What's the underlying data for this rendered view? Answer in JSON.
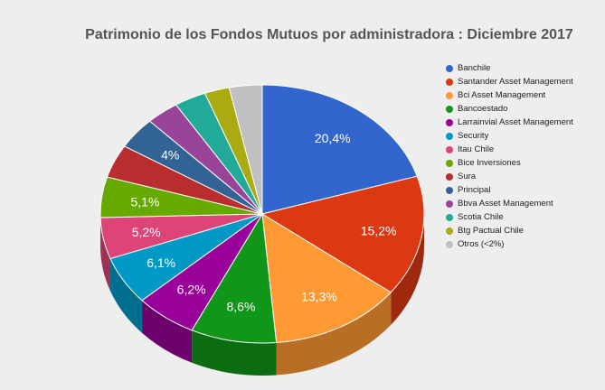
{
  "chart_data": {
    "type": "pie",
    "title": "Patrimonio de los Fondos Mutuos por administradora : Diciembre 2017",
    "legend_position": "right",
    "slices": [
      {
        "name": "Banchile",
        "value": 20.4,
        "label": "20,4%",
        "color": "#3366cc"
      },
      {
        "name": "Santander Asset Management",
        "value": 15.2,
        "label": "15,2%",
        "color": "#dc3912"
      },
      {
        "name": "Bci Asset Management",
        "value": 13.3,
        "label": "13,3%",
        "color": "#ff9933"
      },
      {
        "name": "Bancoestado",
        "value": 8.6,
        "label": "8,6%",
        "color": "#109618"
      },
      {
        "name": "Larrainvial Asset Management",
        "value": 6.2,
        "label": "6,2%",
        "color": "#990099"
      },
      {
        "name": "Security",
        "value": 6.1,
        "label": "6,1%",
        "color": "#0099c6"
      },
      {
        "name": "Itau Chile",
        "value": 5.2,
        "label": "5,2%",
        "color": "#dd4477"
      },
      {
        "name": "Bice Inversiones",
        "value": 5.1,
        "label": "5,1%",
        "color": "#66aa00"
      },
      {
        "name": "Sura",
        "value": 4.2,
        "label": "",
        "color": "#b82e2e"
      },
      {
        "name": "Principal",
        "value": 4.0,
        "label": "4%",
        "color": "#316395"
      },
      {
        "name": "Bbva Asset Management",
        "value": 3.3,
        "label": "",
        "color": "#994499"
      },
      {
        "name": "Scotia Chile",
        "value": 3.2,
        "label": "",
        "color": "#22aa99"
      },
      {
        "name": "Btg Pactual Chile",
        "value": 2.5,
        "label": "",
        "color": "#aaaa11"
      },
      {
        "name": "Otros (<2%)",
        "value": 3.3,
        "label": "",
        "color": "#c0c0c0"
      }
    ]
  }
}
